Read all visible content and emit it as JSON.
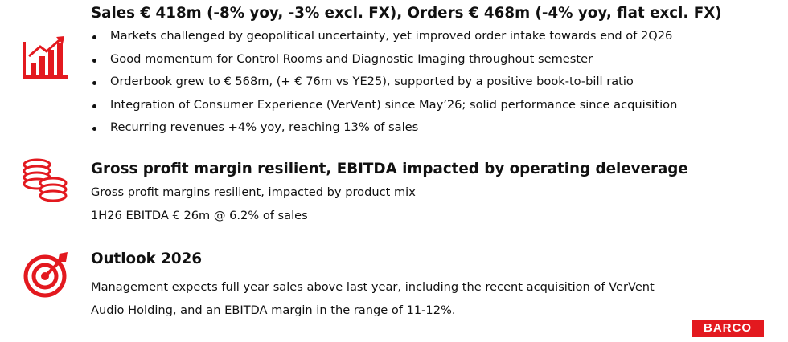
{
  "sections": [
    {
      "title": "Sales € 418m (-8% yoy, -3% excl. FX), Orders € 468m (-4% yoy, flat excl. FX)",
      "bullets": [
        "Markets challenged by geopolitical uncertainty, yet improved order intake towards end of 2Q26",
        "Good momentum for Control Rooms and Diagnostic Imaging throughout semester",
        "Orderbook grew to € 568m, (+ € 76m vs YE25), supported by a positive book-to-bill ratio",
        "Integration of Consumer Experience (VerVent) since May’26; solid performance since acquisition",
        "Recurring revenues +4% yoy, reaching 13% of sales"
      ]
    },
    {
      "title": "Gross profit margin resilient, EBITDA impacted by operating deleverage",
      "lines": [
        "Gross profit margins resilient, impacted by product mix",
        "1H26 EBITDA € 26m @ 6.2% of sales"
      ]
    },
    {
      "title": "Outlook 2026",
      "paragraph": "Management expects full year sales above last year, including the recent acquisition of VerVent Audio Holding, and an EBITDA margin in the range of 11-12%."
    }
  ],
  "logo": "BARCO"
}
